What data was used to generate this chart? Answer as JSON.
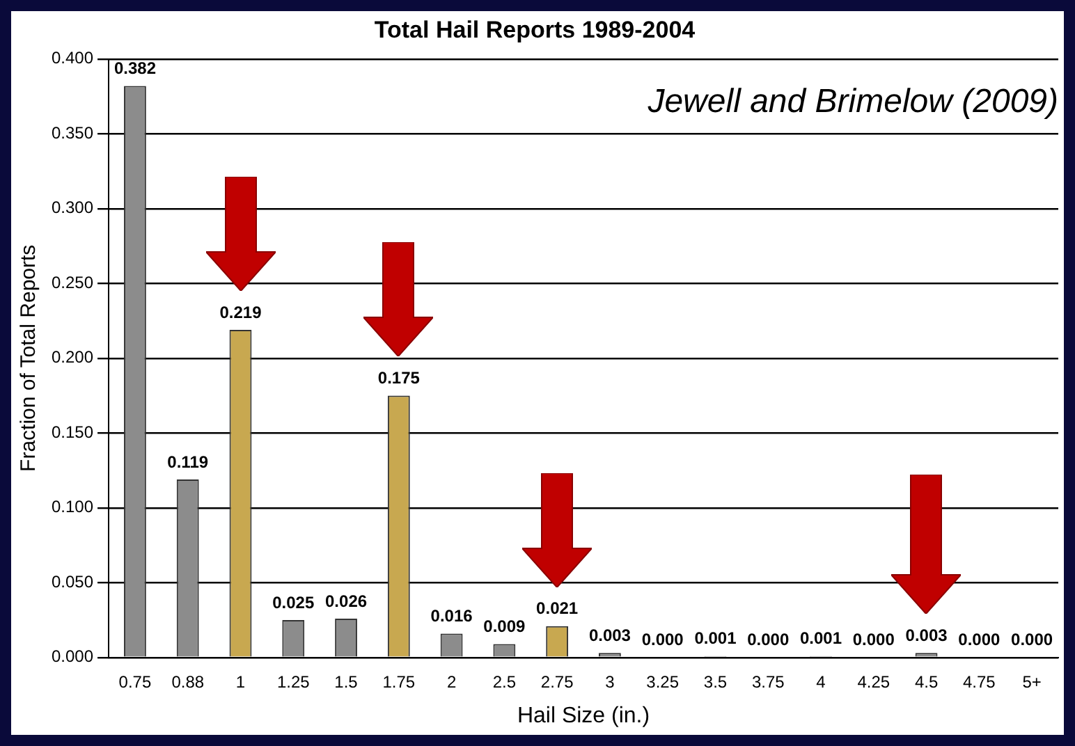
{
  "chart_data": {
    "type": "bar",
    "title": "Total Hail Reports 1989-2004",
    "xlabel": "Hail Size (in.)",
    "ylabel": "Fraction of Total Reports",
    "annotations": [
      "Jewell and Brimelow (2009)"
    ],
    "categories": [
      "0.75",
      "0.88",
      "1",
      "1.25",
      "1.5",
      "1.75",
      "2",
      "2.5",
      "2.75",
      "3",
      "3.25",
      "3.5",
      "3.75",
      "4",
      "4.25",
      "4.5",
      "4.75",
      "5+"
    ],
    "values": [
      0.382,
      0.119,
      0.219,
      0.025,
      0.026,
      0.175,
      0.016,
      0.009,
      0.021,
      0.003,
      0,
      0.001,
      0,
      0.001,
      0,
      0.003,
      0,
      0
    ],
    "colors": [
      "#8c8c8c",
      "#8c8c8c",
      "#c8a850",
      "#8c8c8c",
      "#8c8c8c",
      "#c8a850",
      "#8c8c8c",
      "#8c8c8c",
      "#c8a850",
      "#8c8c8c",
      "#8c8c8c",
      "#8c8c8c",
      "#8c8c8c",
      "#8c8c8c",
      "#8c8c8c",
      "#8c8c8c",
      "#8c8c8c",
      "#8c8c8c"
    ],
    "value_labels": [
      "0.382",
      "0.119",
      "0.219",
      "0.025",
      "0.026",
      "0.175",
      "0.016",
      "0.009",
      "0.021",
      "0.003",
      "0.000",
      "0.001",
      "0.000",
      "0.001",
      "0.000",
      "0.003",
      "0.000",
      "0.000"
    ],
    "ylim": [
      0,
      0.4
    ],
    "yticks": [
      {
        "value": 0,
        "label": "0.000"
      },
      {
        "value": 0.05,
        "label": "0.050"
      },
      {
        "value": 0.1,
        "label": "0.100"
      },
      {
        "value": 0.15,
        "label": "0.150"
      },
      {
        "value": 0.2,
        "label": "0.200"
      },
      {
        "value": 0.25,
        "label": "0.250"
      },
      {
        "value": 0.3,
        "label": "0.300"
      },
      {
        "value": 0.35,
        "label": "0.350"
      },
      {
        "value": 0.4,
        "label": "0.400"
      }
    ],
    "grid": "y",
    "legend": false
  }
}
